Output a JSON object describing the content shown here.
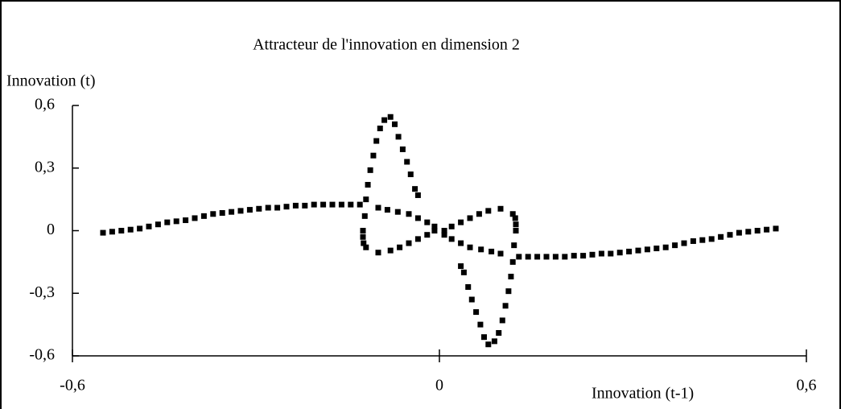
{
  "chart_data": {
    "type": "scatter",
    "title": "Attracteur de l'innovation en dimension 2",
    "y_label": "Innovation (t)",
    "x_label": "Innovation (t-1)",
    "color": "#000000",
    "xlim": [
      -0.6,
      0.6
    ],
    "ylim": [
      -0.6,
      0.6
    ],
    "xticks": [
      {
        "value": -0.6,
        "label": "-0,6"
      },
      0,
      {
        "value": 0.6,
        "label": "0,6"
      }
    ],
    "yticks": [
      {
        "value": 0.6,
        "label": "0,6"
      },
      {
        "value": 0.3,
        "label": "0,3"
      },
      0,
      {
        "value": -0.3,
        "label": "-0,3"
      },
      {
        "value": -0.6,
        "label": "-0,6"
      }
    ],
    "grid": false,
    "x": [
      -0.55,
      -0.535,
      -0.52,
      -0.505,
      -0.49,
      -0.475,
      -0.46,
      -0.445,
      -0.43,
      -0.415,
      -0.4,
      -0.385,
      -0.37,
      -0.355,
      -0.34,
      -0.325,
      -0.31,
      -0.295,
      -0.28,
      -0.265,
      -0.25,
      -0.235,
      -0.22,
      -0.205,
      -0.19,
      -0.175,
      -0.16,
      -0.145,
      -0.13,
      -0.125,
      -0.122,
      -0.12,
      -0.117,
      -0.113,
      -0.108,
      -0.103,
      -0.097,
      -0.09,
      -0.08,
      -0.073,
      -0.067,
      -0.06,
      -0.053,
      -0.047,
      -0.04,
      -0.035,
      -0.1,
      -0.085,
      -0.068,
      -0.05,
      -0.035,
      -0.02,
      -0.008,
      -0.125,
      -0.124,
      -0.12,
      -0.1,
      -0.08,
      -0.065,
      -0.05,
      -0.035,
      -0.02,
      -0.008,
      0.55,
      0.535,
      0.52,
      0.505,
      0.49,
      0.475,
      0.46,
      0.445,
      0.43,
      0.415,
      0.4,
      0.385,
      0.37,
      0.355,
      0.34,
      0.325,
      0.31,
      0.295,
      0.28,
      0.265,
      0.25,
      0.235,
      0.22,
      0.205,
      0.19,
      0.175,
      0.16,
      0.145,
      0.13,
      0.125,
      0.122,
      0.12,
      0.117,
      0.113,
      0.108,
      0.103,
      0.097,
      0.09,
      0.08,
      0.073,
      0.067,
      0.06,
      0.053,
      0.047,
      0.04,
      0.035,
      0.1,
      0.085,
      0.068,
      0.05,
      0.035,
      0.02,
      0.008,
      0.125,
      0.124,
      0.12,
      0.1,
      0.08,
      0.065,
      0.05,
      0.035,
      0.02,
      0.008
    ],
    "values": [
      -0.01,
      -0.005,
      0,
      0.005,
      0.01,
      0.02,
      0.03,
      0.04,
      0.045,
      0.05,
      0.06,
      0.07,
      0.08,
      0.085,
      0.09,
      0.095,
      0.1,
      0.105,
      0.11,
      0.11,
      0.115,
      0.12,
      0.12,
      0.125,
      0.125,
      0.125,
      0.125,
      0.125,
      0.125,
      0,
      0.07,
      0.15,
      0.22,
      0.29,
      0.36,
      0.43,
      0.49,
      0.53,
      0.545,
      0.51,
      0.45,
      0.39,
      0.33,
      0.27,
      0.2,
      0.17,
      0.11,
      0.1,
      0.09,
      0.08,
      0.06,
      0.04,
      0.02,
      -0.03,
      -0.06,
      -0.08,
      -0.105,
      -0.095,
      -0.08,
      -0.06,
      -0.04,
      -0.02,
      0,
      0.01,
      0.005,
      0,
      -0.005,
      -0.01,
      -0.02,
      -0.03,
      -0.04,
      -0.045,
      -0.05,
      -0.06,
      -0.07,
      -0.08,
      -0.085,
      -0.09,
      -0.095,
      -0.1,
      -0.105,
      -0.11,
      -0.11,
      -0.115,
      -0.12,
      -0.12,
      -0.125,
      -0.125,
      -0.125,
      -0.125,
      -0.125,
      -0.125,
      0,
      -0.07,
      -0.15,
      -0.22,
      -0.29,
      -0.36,
      -0.43,
      -0.49,
      -0.53,
      -0.545,
      -0.51,
      -0.45,
      -0.39,
      -0.33,
      -0.27,
      -0.2,
      -0.17,
      -0.11,
      -0.1,
      -0.09,
      -0.08,
      -0.06,
      -0.04,
      -0.02,
      0.03,
      0.06,
      0.08,
      0.105,
      0.095,
      0.08,
      0.06,
      0.04,
      0.02,
      0
    ]
  }
}
